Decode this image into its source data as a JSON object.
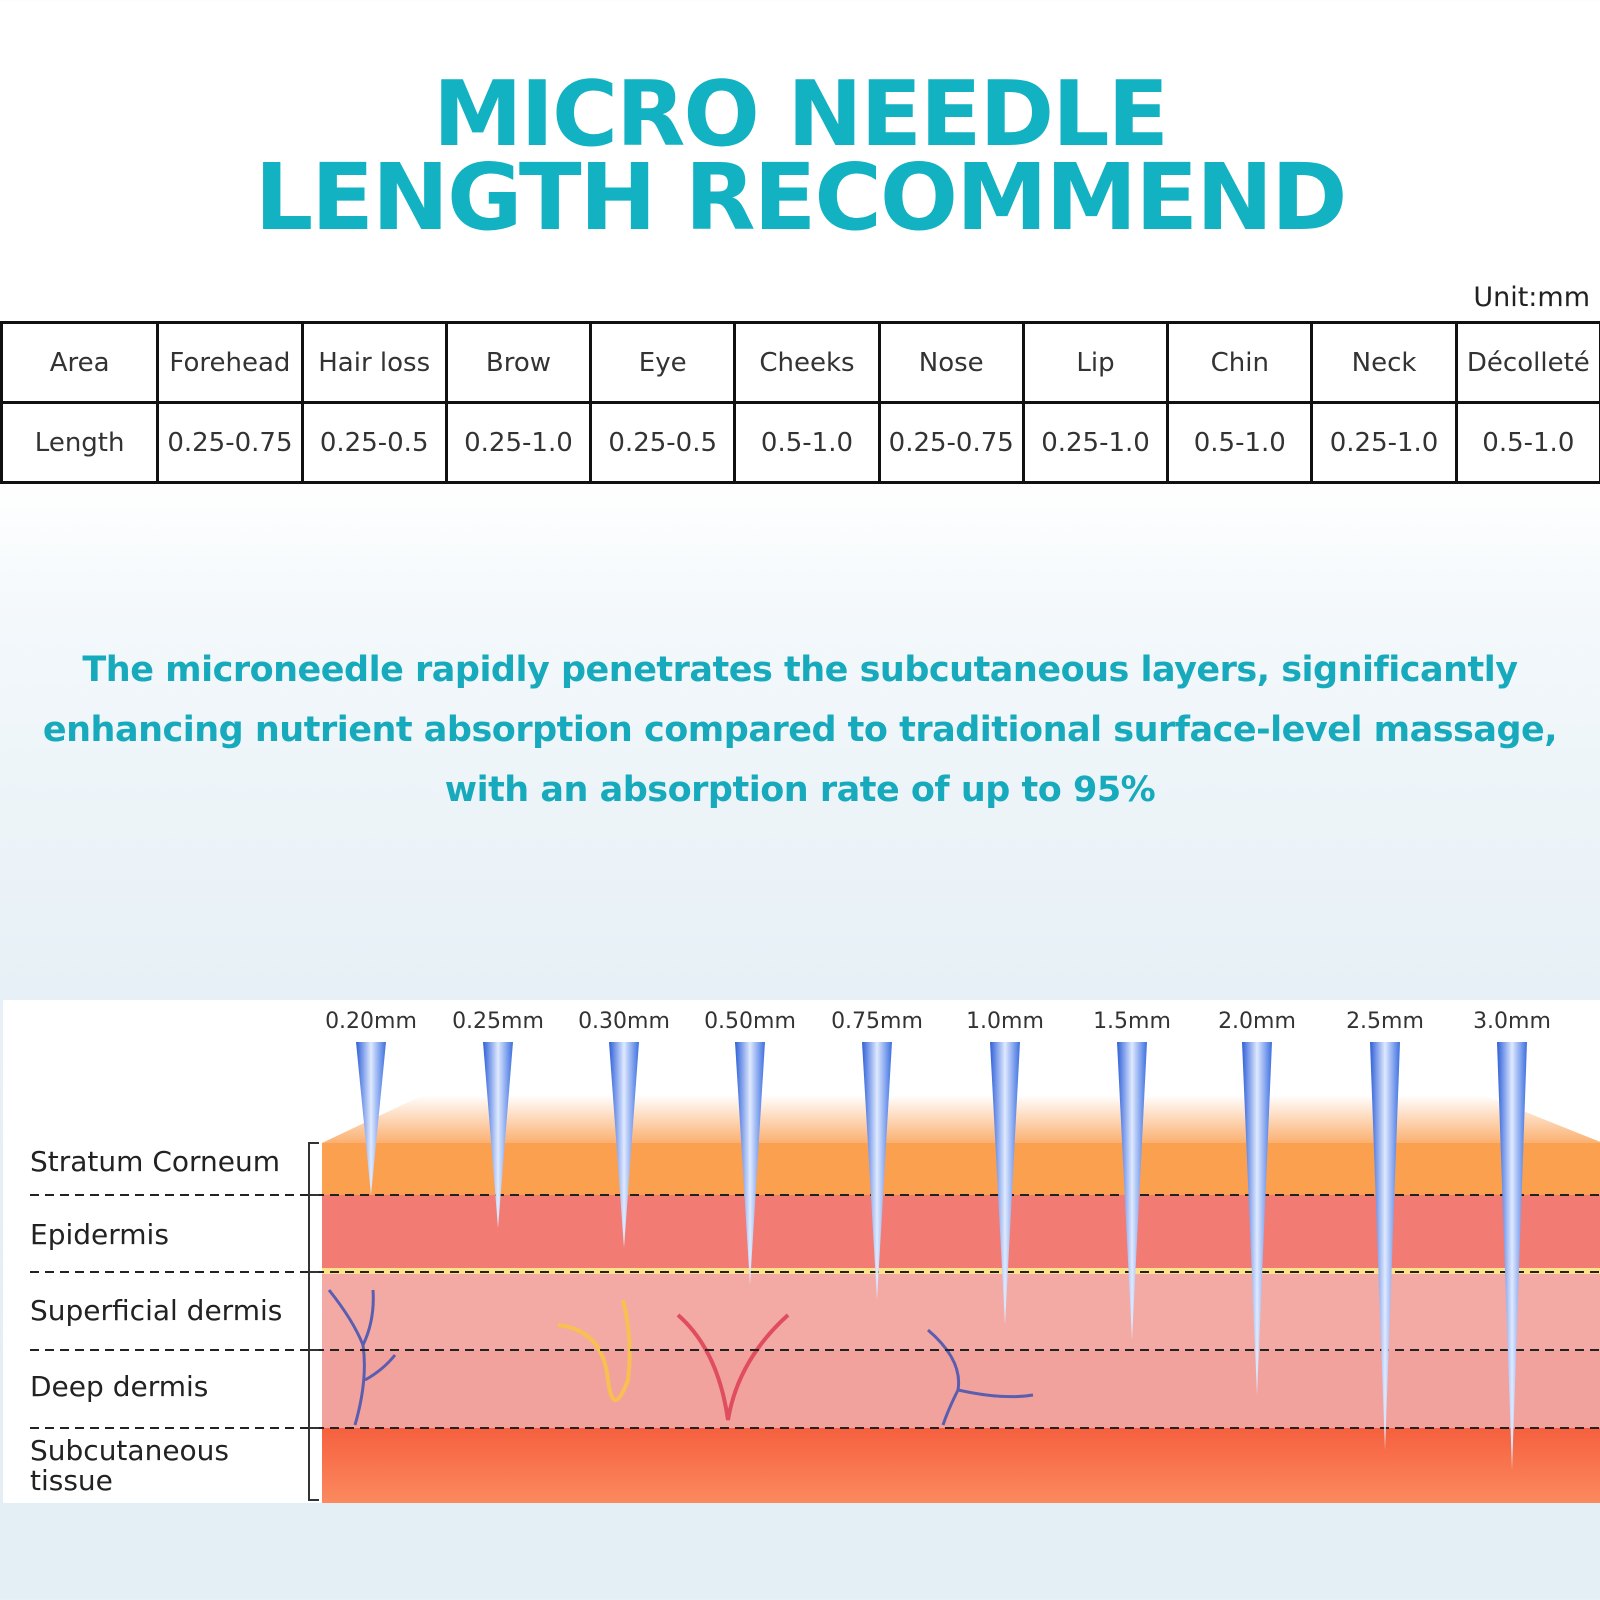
{
  "title": {
    "line1": "MICRO NEEDLE",
    "line2": "LENGTH RECOMMEND"
  },
  "unit": "Unit:mm",
  "table": {
    "header": [
      "Area",
      "Forehead",
      "Hair loss",
      "Brow",
      "Eye",
      "Cheeks",
      "Nose",
      "Lip",
      "Chin",
      "Neck",
      "Décolleté"
    ],
    "row": [
      "Length",
      "0.25-0.75",
      "0.25-0.5",
      "0.25-1.0",
      "0.25-0.5",
      "0.5-1.0",
      "0.25-0.75",
      "0.25-1.0",
      "0.5-1.0",
      "0.25-1.0",
      "0.5-1.0"
    ]
  },
  "description": "The microneedle rapidly penetrates the subcutaneous layers, significantly enhancing nutrient absorption compared to traditional surface-level massage, with an absorption rate of up to 95%",
  "diagram": {
    "layers": [
      "Stratum Corneum",
      "Epidermis",
      "Superficial dermis",
      "Deep dermis",
      "Subcutaneous tissue"
    ],
    "needles": [
      "0.20mm",
      "0.25mm",
      "0.30mm",
      "0.50mm",
      "0.75mm",
      "1.0mm",
      "1.5mm",
      "2.0mm",
      "2.5mm",
      "3.0mm"
    ],
    "colors": {
      "stratum": "#fba04e",
      "epidermis": "#f27b74",
      "dermis": "#f3aaa4",
      "subcutaneous": "#f86f4f",
      "needle": "#3d6fe0"
    }
  }
}
